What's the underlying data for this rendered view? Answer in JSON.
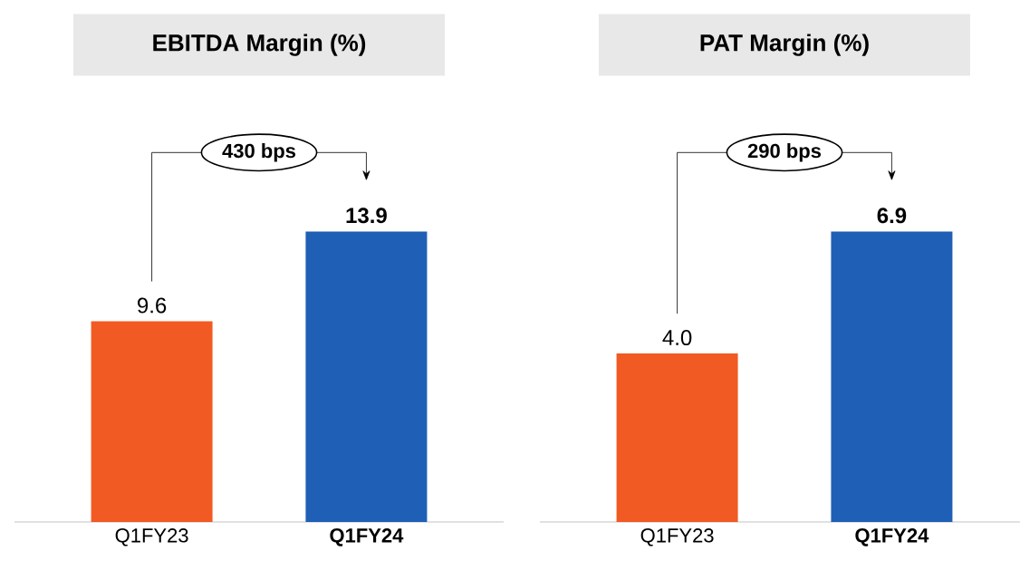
{
  "chart_data": [
    {
      "type": "bar",
      "title": "EBITDA Margin (%)",
      "categories": [
        "Q1FY23",
        "**Q1FY24**"
      ],
      "values": [
        9.6,
        13.9
      ],
      "value_labels": [
        "9.6",
        "13.9"
      ],
      "colors": [
        "#f15a22",
        "#1f5fb5"
      ],
      "annotations": [
        "430 bps"
      ]
    },
    {
      "type": "bar",
      "title": "PAT Margin (%)",
      "categories": [
        "Q1FY23",
        "**Q1FY24**"
      ],
      "values": [
        4.0,
        6.9
      ],
      "value_labels": [
        "4.0",
        "6.9"
      ],
      "colors": [
        "#f15a22",
        "#1f5fb5"
      ],
      "annotations": [
        "290 bps"
      ]
    }
  ]
}
